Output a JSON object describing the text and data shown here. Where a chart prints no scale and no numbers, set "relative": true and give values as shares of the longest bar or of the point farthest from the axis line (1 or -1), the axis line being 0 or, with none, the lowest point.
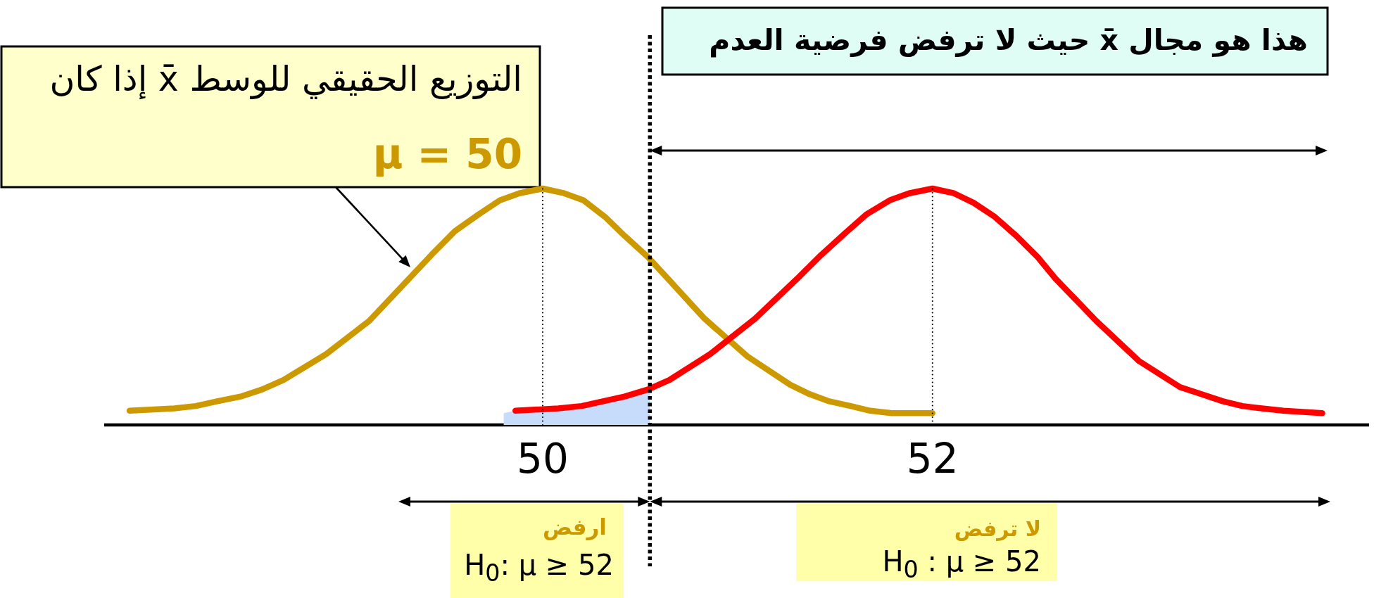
{
  "chart_data": {
    "type": "line",
    "relative": true,
    "xlim": [
      47.75,
      54.24
    ],
    "xticks": [
      50,
      52
    ],
    "series": [
      {
        "type": "area",
        "color": "#c6dcfa",
        "x": [
          49.8,
          49.86,
          50.08,
          50.2,
          50.31,
          50.42,
          50.55
        ],
        "values": [
          0.05,
          0.06,
          0.07,
          0.08,
          0.1,
          0.12,
          0.14
        ]
      },
      {
        "color": "#cc9900",
        "x": [
          47.88,
          48.11,
          48.22,
          48.33,
          48.45,
          48.56,
          48.67,
          48.89,
          49.11,
          49.43,
          49.55,
          49.67,
          49.78,
          49.88,
          50,
          50.11,
          50.21,
          50.32,
          50.42,
          50.54,
          50.63,
          50.83,
          51.05,
          51.27,
          51.37,
          51.47,
          51.58,
          51.68,
          51.79,
          52
        ],
        "values": [
          0.06,
          0.07,
          0.08,
          0.1,
          0.12,
          0.15,
          0.19,
          0.3,
          0.44,
          0.72,
          0.82,
          0.89,
          0.95,
          0.98,
          1,
          0.98,
          0.95,
          0.88,
          0.8,
          0.71,
          0.63,
          0.45,
          0.29,
          0.17,
          0.13,
          0.1,
          0.08,
          0.06,
          0.05,
          0.05
        ]
      },
      {
        "color": "#ff0000",
        "x": [
          49.86,
          50.08,
          50.2,
          50.31,
          50.42,
          50.54,
          50.65,
          50.86,
          51.09,
          51.32,
          51.43,
          51.55,
          51.66,
          51.78,
          51.88,
          52,
          52.11,
          52.21,
          52.32,
          52.43,
          52.54,
          52.63,
          52.84,
          53.06,
          53.27,
          53.38,
          53.49,
          53.59,
          53.69,
          53.8,
          54
        ],
        "values": [
          0.06,
          0.07,
          0.08,
          0.1,
          0.12,
          0.15,
          0.19,
          0.3,
          0.45,
          0.63,
          0.72,
          0.81,
          0.89,
          0.95,
          0.98,
          1,
          0.98,
          0.94,
          0.88,
          0.8,
          0.71,
          0.62,
          0.44,
          0.27,
          0.16,
          0.13,
          0.1,
          0.08,
          0.07,
          0.06,
          0.05
        ]
      }
    ],
    "ref_lines": [
      {
        "axis": "x",
        "value": 50,
        "line_style": "dotted"
      },
      {
        "axis": "x",
        "value": 52,
        "line_style": "dotted"
      },
      {
        "axis": "x",
        "value": 50.55,
        "line_style": "dashed"
      }
    ],
    "annotations": [
      "التوزيع الحقيقي للوسط x̄ إذا كان",
      "μ = 50",
      "هذا هو مجال x̄ حيث لا ترفض فرضية العدم",
      "ارفض",
      "H$_{0}$: μ ≥ 52",
      "لا ترفض",
      "H$_{0}$ : μ ≥ 52"
    ]
  }
}
